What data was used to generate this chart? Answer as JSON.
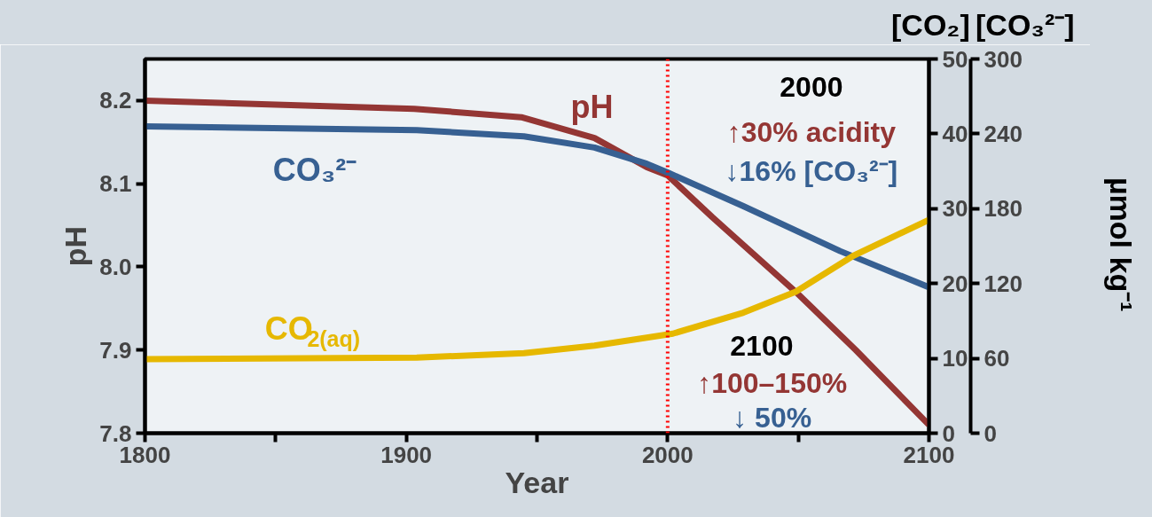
{
  "chart_data": {
    "type": "line",
    "xlabel": "Year",
    "ylabel": "pH",
    "y2label": "[CO₂]",
    "y3label": "[CO₃²⁻]",
    "xlim": [
      1800,
      2100
    ],
    "xticks": [
      1800,
      {
        "value": 1850,
        "label": null
      },
      1900,
      {
        "value": 1950,
        "label": null
      },
      2000,
      {
        "value": 2050,
        "label": null
      },
      2100
    ],
    "ylim": [
      7.8,
      8.25
    ],
    "yticks": [
      7.8,
      7.9,
      {
        "value": 8.0,
        "label": "8.0"
      },
      8.1,
      8.2
    ],
    "y2lim": [
      0,
      50
    ],
    "y2ticks": [
      0,
      10,
      20,
      30,
      40,
      50
    ],
    "y3lim": [
      0,
      300
    ],
    "y3ticks": [
      0,
      60,
      120,
      180,
      240,
      300
    ],
    "grid": false,
    "line_style": "solid",
    "marker": "none",
    "series": [
      {
        "name": "pH",
        "color": "#943634",
        "x": [
          1800,
          1903,
          1944,
          1972,
          1992,
          2000,
          2017,
          2049,
          2072,
          2100
        ],
        "values": [
          8.2,
          8.19,
          8.18,
          8.155,
          8.12,
          8.11,
          8.06,
          7.97,
          7.9,
          7.81
        ]
      },
      {
        "name": "CO₃²⁻",
        "color": "#376092",
        "axis": "y3",
        "x": [
          1800,
          1904,
          1945,
          1972,
          1992,
          2000,
          2029,
          2066,
          2100
        ],
        "values": [
          246,
          243,
          238,
          229,
          216,
          209,
          182,
          146,
          117
        ]
      },
      {
        "name": "CO$_{2(aq)}$",
        "color": "#e6b800",
        "axis": "y2",
        "x": [
          1800,
          1904,
          1945,
          1972,
          2002,
          2029,
          2049,
          2071,
          2100
        ],
        "values": [
          9.9,
          10.1,
          10.7,
          11.7,
          13.3,
          16.1,
          18.9,
          23.7,
          28.5
        ]
      }
    ],
    "ref_lines": [
      {
        "axis": "x",
        "value": 2000,
        "label": null,
        "color": "#ff0000",
        "line_style": "dotted"
      }
    ],
    "annotations": [
      "2000",
      "↑30% acidity",
      "↓16% [CO₃²⁻]",
      "2100",
      "↑100–150%",
      "↓ 50%",
      "µmol kg⁻¹"
    ]
  }
}
